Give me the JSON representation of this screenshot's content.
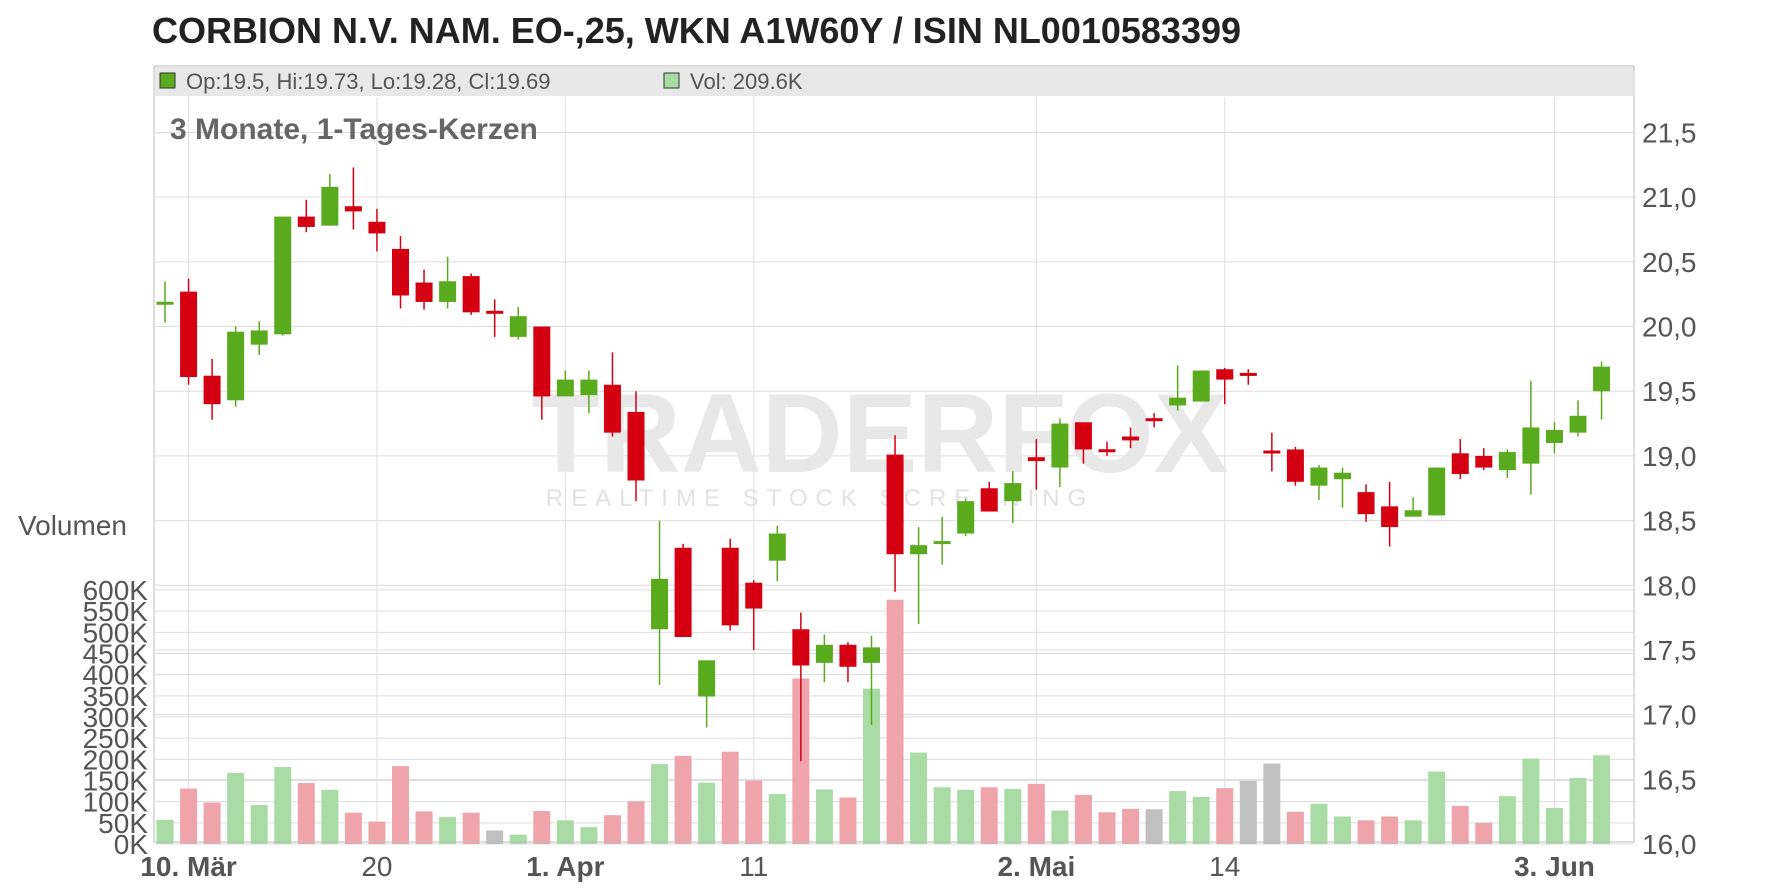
{
  "chart_data": {
    "type": "candlestick",
    "title": "CORBION N.V. NAM. EO-,25, WKN A1W60Y / ISIN NL0010583399",
    "subtitle": "3 Monate, 1-Tages-Kerzen",
    "info_bar": {
      "ohlc_text": "Op:19.5, Hi:19.73, Lo:19.28, Cl:19.69",
      "volume_text": "Vol: 209.6K"
    },
    "volume_axis_label": "Volumen",
    "watermark": {
      "brand": "TRADERFOX",
      "tagline": "REALTIME STOCK SCREENING"
    },
    "price_axis": {
      "ylim": [
        16.0,
        21.5
      ],
      "ticks": [
        "16,0",
        "16,5",
        "17,0",
        "17,5",
        "18,0",
        "18,5",
        "19,0",
        "19,5",
        "20,0",
        "20,5",
        "21,0",
        "21,5"
      ]
    },
    "volume_axis": {
      "ylim": [
        0,
        600000
      ],
      "ticks": [
        "0K",
        "50K",
        "100K",
        "150K",
        "200K",
        "250K",
        "300K",
        "350K",
        "400K",
        "450K",
        "500K",
        "550K",
        "600K"
      ]
    },
    "x_labels": [
      {
        "index": 1,
        "label": "10. Mär",
        "bold": true
      },
      {
        "index": 9,
        "label": "20",
        "bold": false
      },
      {
        "index": 17,
        "label": "1. Apr",
        "bold": true
      },
      {
        "index": 25,
        "label": "11",
        "bold": false
      },
      {
        "index": 37,
        "label": "2. Mai",
        "bold": true
      },
      {
        "index": 45,
        "label": "14",
        "bold": false
      },
      {
        "index": 59,
        "label": "3. Jun",
        "bold": true
      }
    ],
    "colors": {
      "up": "#5aaa1e",
      "down": "#d40012",
      "up_volume": "#a8dca4",
      "down_volume": "#efa4ac",
      "flat_volume": "#c0c0c0",
      "grid": "#dddddd",
      "info_bar_bg": "#e8e8e8"
    },
    "candles": [
      {
        "o": 20.17,
        "h": 20.35,
        "l": 20.03,
        "c": 20.19,
        "v": 57000
      },
      {
        "o": 20.27,
        "h": 20.37,
        "l": 19.55,
        "c": 19.61,
        "v": 131000
      },
      {
        "o": 19.62,
        "h": 19.75,
        "l": 19.28,
        "c": 19.4,
        "v": 98000
      },
      {
        "o": 19.43,
        "h": 20.0,
        "l": 19.38,
        "c": 19.96,
        "v": 168000
      },
      {
        "o": 19.86,
        "h": 20.04,
        "l": 19.78,
        "c": 19.97,
        "v": 92000
      },
      {
        "o": 19.94,
        "h": 20.85,
        "l": 19.93,
        "c": 20.85,
        "v": 182000
      },
      {
        "o": 20.85,
        "h": 20.98,
        "l": 20.73,
        "c": 20.77,
        "v": 144000
      },
      {
        "o": 20.78,
        "h": 21.18,
        "l": 20.78,
        "c": 21.08,
        "v": 128000
      },
      {
        "o": 20.93,
        "h": 21.23,
        "l": 20.75,
        "c": 20.89,
        "v": 74000
      },
      {
        "o": 20.81,
        "h": 20.91,
        "l": 20.58,
        "c": 20.72,
        "v": 53000
      },
      {
        "o": 20.6,
        "h": 20.7,
        "l": 20.14,
        "c": 20.24,
        "v": 184000
      },
      {
        "o": 20.34,
        "h": 20.44,
        "l": 20.13,
        "c": 20.19,
        "v": 77000
      },
      {
        "o": 20.19,
        "h": 20.54,
        "l": 20.14,
        "c": 20.35,
        "v": 64000
      },
      {
        "o": 20.39,
        "h": 20.41,
        "l": 20.09,
        "c": 20.11,
        "v": 74000
      },
      {
        "o": 20.11,
        "h": 20.21,
        "l": 19.92,
        "c": 20.11,
        "v": 32000
      },
      {
        "o": 19.92,
        "h": 20.15,
        "l": 19.9,
        "c": 20.08,
        "v": 22000
      },
      {
        "o": 20.0,
        "h": 20.0,
        "l": 19.28,
        "c": 19.46,
        "v": 78000
      },
      {
        "o": 19.46,
        "h": 19.66,
        "l": 19.46,
        "c": 19.59,
        "v": 56000
      },
      {
        "o": 19.47,
        "h": 19.66,
        "l": 19.33,
        "c": 19.59,
        "v": 40000
      },
      {
        "o": 19.55,
        "h": 19.8,
        "l": 19.15,
        "c": 19.18,
        "v": 68000
      },
      {
        "o": 19.34,
        "h": 19.5,
        "l": 18.65,
        "c": 18.81,
        "v": 101000
      },
      {
        "o": 17.66,
        "h": 18.5,
        "l": 17.23,
        "c": 18.05,
        "v": 189000
      },
      {
        "o": 18.29,
        "h": 18.32,
        "l": 17.6,
        "c": 17.6,
        "v": 208000
      },
      {
        "o": 17.14,
        "h": 17.42,
        "l": 16.9,
        "c": 17.42,
        "v": 145000
      },
      {
        "o": 18.29,
        "h": 18.36,
        "l": 17.65,
        "c": 17.69,
        "v": 218000
      },
      {
        "o": 18.02,
        "h": 18.04,
        "l": 17.5,
        "c": 17.82,
        "v": 150000
      },
      {
        "o": 18.19,
        "h": 18.46,
        "l": 18.03,
        "c": 18.4,
        "v": 118000
      },
      {
        "o": 17.66,
        "h": 17.79,
        "l": 16.64,
        "c": 17.38,
        "v": 391000
      },
      {
        "o": 17.4,
        "h": 17.62,
        "l": 17.25,
        "c": 17.54,
        "v": 129000
      },
      {
        "o": 17.54,
        "h": 17.56,
        "l": 17.25,
        "c": 17.37,
        "v": 110000
      },
      {
        "o": 17.4,
        "h": 17.61,
        "l": 16.92,
        "c": 17.52,
        "v": 367000
      },
      {
        "o": 19.01,
        "h": 19.16,
        "l": 17.95,
        "c": 18.24,
        "v": 577000
      },
      {
        "o": 18.24,
        "h": 18.45,
        "l": 17.7,
        "c": 18.31,
        "v": 216000
      },
      {
        "o": 18.32,
        "h": 18.53,
        "l": 18.16,
        "c": 18.34,
        "v": 134000
      },
      {
        "o": 18.4,
        "h": 18.67,
        "l": 18.38,
        "c": 18.65,
        "v": 128000
      },
      {
        "o": 18.75,
        "h": 18.8,
        "l": 18.57,
        "c": 18.57,
        "v": 134000
      },
      {
        "o": 18.65,
        "h": 18.88,
        "l": 18.48,
        "c": 18.79,
        "v": 130000
      },
      {
        "o": 18.99,
        "h": 19.13,
        "l": 18.74,
        "c": 18.96,
        "v": 142000
      },
      {
        "o": 18.91,
        "h": 19.29,
        "l": 18.76,
        "c": 19.25,
        "v": 79000
      },
      {
        "o": 19.26,
        "h": 19.26,
        "l": 18.94,
        "c": 19.05,
        "v": 116000
      },
      {
        "o": 19.05,
        "h": 19.11,
        "l": 19.0,
        "c": 19.03,
        "v": 75000
      },
      {
        "o": 19.15,
        "h": 19.22,
        "l": 19.06,
        "c": 19.12,
        "v": 83000
      },
      {
        "o": 19.28,
        "h": 19.33,
        "l": 19.22,
        "c": 19.28,
        "v": 82000
      },
      {
        "o": 19.39,
        "h": 19.7,
        "l": 19.35,
        "c": 19.45,
        "v": 125000
      },
      {
        "o": 19.42,
        "h": 19.66,
        "l": 19.42,
        "c": 19.66,
        "v": 111000
      },
      {
        "o": 19.67,
        "h": 19.68,
        "l": 19.4,
        "c": 19.59,
        "v": 132000
      },
      {
        "o": 19.63,
        "h": 19.67,
        "l": 19.55,
        "c": 19.63,
        "v": 149000
      },
      {
        "o": 19.03,
        "h": 19.18,
        "l": 18.88,
        "c": 19.03,
        "v": 190000
      },
      {
        "o": 19.05,
        "h": 19.07,
        "l": 18.77,
        "c": 18.8,
        "v": 76000
      },
      {
        "o": 18.77,
        "h": 18.93,
        "l": 18.66,
        "c": 18.91,
        "v": 95000
      },
      {
        "o": 18.82,
        "h": 18.91,
        "l": 18.6,
        "c": 18.87,
        "v": 65000
      },
      {
        "o": 18.72,
        "h": 18.78,
        "l": 18.49,
        "c": 18.55,
        "v": 56000
      },
      {
        "o": 18.61,
        "h": 18.8,
        "l": 18.3,
        "c": 18.45,
        "v": 65000
      },
      {
        "o": 18.53,
        "h": 18.68,
        "l": 18.53,
        "c": 18.58,
        "v": 56000
      },
      {
        "o": 18.54,
        "h": 18.9,
        "l": 18.54,
        "c": 18.91,
        "v": 171000
      },
      {
        "o": 19.02,
        "h": 19.13,
        "l": 18.82,
        "c": 18.86,
        "v": 90000
      },
      {
        "o": 19.0,
        "h": 19.06,
        "l": 18.89,
        "c": 18.91,
        "v": 50000
      },
      {
        "o": 18.89,
        "h": 19.05,
        "l": 18.83,
        "c": 19.03,
        "v": 113000
      },
      {
        "o": 18.94,
        "h": 19.58,
        "l": 18.7,
        "c": 19.22,
        "v": 202000
      },
      {
        "o": 19.1,
        "h": 19.26,
        "l": 19.02,
        "c": 19.2,
        "v": 85000
      },
      {
        "o": 19.18,
        "h": 19.43,
        "l": 19.15,
        "c": 19.31,
        "v": 156000
      },
      {
        "o": 19.5,
        "h": 19.73,
        "l": 19.28,
        "c": 19.69,
        "v": 209600
      }
    ]
  }
}
